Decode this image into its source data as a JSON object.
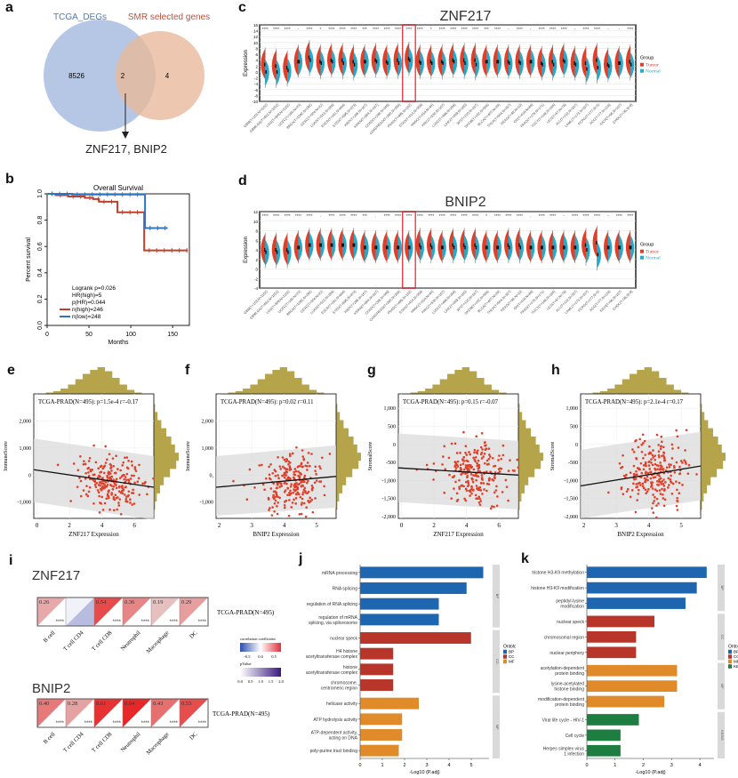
{
  "panel_labels": [
    "a",
    "b",
    "c",
    "d",
    "e",
    "f",
    "g",
    "h",
    "i",
    "j",
    "k"
  ],
  "venn": {
    "left_label": "TCGA_DEGs",
    "right_label": "SMR selected genes",
    "left_only": "8526",
    "intersection": "2",
    "right_only": "4",
    "result_text": "ZNF217, BNIP2",
    "colors": {
      "left": "#a9bde0",
      "right": "#e8b99b",
      "left_text": "#4a7bc0",
      "right_text": "#c0503a"
    }
  },
  "chart_data": [
    {
      "id": "b",
      "type": "line",
      "title": "Overall Survival",
      "xlabel": "Months",
      "ylabel": "Percent survival",
      "xlim": [
        0,
        170
      ],
      "ylim": [
        0,
        1.0
      ],
      "xticks": [
        0,
        50,
        100,
        150
      ],
      "yticks": [
        "0.0",
        "0.2",
        "0.4",
        "0.6",
        "0.8",
        "1.0"
      ],
      "legend_text": [
        "Logrank p=0.026",
        "HR(high)=5",
        "p(HR)=0.044"
      ],
      "series": [
        {
          "name": "n(high)=246",
          "color": "#c0412b",
          "steps": [
            [
              0,
              1.0
            ],
            [
              10,
              0.99
            ],
            [
              25,
              0.98
            ],
            [
              45,
              0.97
            ],
            [
              55,
              0.96
            ],
            [
              62,
              0.94
            ],
            [
              84,
              0.86
            ],
            [
              116,
              0.57
            ],
            [
              168,
              0.57
            ]
          ]
        },
        {
          "name": "n(low)=248",
          "color": "#2e75c0",
          "steps": [
            [
              0,
              1.0
            ],
            [
              30,
              0.995
            ],
            [
              116,
              0.995
            ],
            [
              117,
              0.74
            ],
            [
              144,
              0.74
            ]
          ]
        }
      ]
    },
    {
      "id": "c",
      "type": "violin",
      "title": "ZNF217",
      "ylabel": "Expression",
      "yticks": [
        "-10",
        "-8",
        "-6",
        "-4",
        "-2",
        "0",
        "2",
        "4",
        "6",
        "8",
        "10",
        "12",
        "14",
        "16"
      ],
      "ylim": [
        -10,
        16
      ],
      "legend_title": "Group",
      "legend": [
        {
          "name": "Tumor",
          "color": "#e0402a"
        },
        {
          "name": "Normal",
          "color": "#2aa8c8"
        }
      ],
      "highlight_category": "PRAD(T=495,N=152)",
      "categories": [
        "GBM(T=153,N=1152)",
        "GBMLGG(T=662,N=1152)",
        "LGG(T=509,N=1152)",
        "UCEC(T=180,N=23)",
        "BRCA(T=1092,N=292)",
        "CESC(T=304,N=22)",
        "LUAD(T=513,N=288)",
        "ESCA(T=181,N=664)",
        "STES(T=595,N=873)",
        "KIRP(T=288,N=167)",
        "KIPAN(T=884,N=167)",
        "COAD(T=288,N=349)",
        "COADREAD(T=380,N=358)",
        "PRAD(T=495,N=152)",
        "STAD(T=414,N=359)",
        "HNSC(T=518,N=44)",
        "KIRC(T=530,N=167)",
        "LUSC(T=498,N=288)",
        "LIHC(T=369,N=160)",
        "WT(T=120,N=167)",
        "SKCM(T=102,N=556)",
        "BLCA(T=407,N=28)",
        "THCA(T=504,N=337)",
        "READ(T=92,N=10)",
        "OV(T=418,N=88)",
        "PAAD(T=178,N=171)",
        "TGCT(T=148,N=165)",
        "UCS(T=57,N=78)",
        "ALL(T=132,N=337)",
        "LAML(T=173,N=337)",
        "PCPG(T=177,N=3)",
        "ACC(T=77,N=128)",
        "KICH(T=66,N=167)",
        "CHOL(T=36,N=9)"
      ],
      "significance": [
        "****",
        "****",
        "****",
        "-",
        "****",
        "*",
        "****",
        "****",
        "****",
        "***",
        "****",
        "****",
        "****",
        "****",
        "****",
        "*",
        "****",
        "****",
        "****",
        "****",
        "***",
        "****",
        "-",
        "****",
        "-",
        "****",
        "****",
        "****",
        "-",
        "****",
        "****",
        "-",
        "-",
        "****"
      ],
      "tumor_median": [
        2.5,
        2,
        1.5,
        3.5,
        5,
        3.5,
        4,
        4,
        3.5,
        3.5,
        4,
        3.5,
        4,
        4.5,
        3.5,
        3.5,
        3.5,
        4,
        4,
        4,
        3.5,
        3.5,
        3.5,
        3.5,
        3.5,
        3,
        3.5,
        4,
        3,
        3,
        4,
        2.5,
        3,
        3.5
      ],
      "normal_median": [
        0,
        0,
        0.5,
        3.5,
        4,
        3,
        3.5,
        3,
        2.5,
        3.5,
        3.5,
        3,
        3,
        4,
        3,
        3,
        3,
        3.5,
        3,
        2.5,
        3.5,
        3.5,
        3,
        3,
        3.5,
        2.5,
        2.5,
        3.5,
        2.5,
        1,
        1.5,
        2,
        3,
        2.5
      ]
    },
    {
      "id": "d",
      "type": "violin",
      "title": "BNIP2",
      "ylabel": "Expression",
      "yticks": [
        "-4",
        "-2",
        "0",
        "2",
        "4",
        "6",
        "8",
        "10",
        "12"
      ],
      "ylim": [
        -4,
        12
      ],
      "legend_title": "Group",
      "legend": [
        {
          "name": "Tumor",
          "color": "#e0402a"
        },
        {
          "name": "Normal",
          "color": "#2aa8c8"
        }
      ],
      "highlight_category": "PRAD(T=495,N=152)",
      "significance": [
        "****",
        "****",
        "****",
        "****",
        "****",
        ".",
        "****",
        "****",
        "****",
        "***",
        ".",
        "****",
        "****",
        "****",
        "****",
        "****",
        "****",
        "****",
        "****",
        "****",
        "*",
        "****",
        "****",
        "****",
        ".",
        "****",
        "****",
        "-",
        "****",
        "****",
        "****",
        "-",
        "****",
        "****"
      ],
      "tumor_median": [
        4,
        4,
        4,
        4.5,
        5,
        5,
        5,
        5,
        5,
        4.5,
        4.5,
        4.5,
        4.5,
        4.5,
        5,
        5,
        4.5,
        5,
        5,
        5,
        4.5,
        4.5,
        5,
        5,
        4.5,
        4.5,
        4.5,
        4.5,
        4.5,
        5,
        5.5,
        4.5,
        4.5,
        4.5
      ],
      "normal_median": [
        3.5,
        3.5,
        3.5,
        4.5,
        5,
        5,
        5,
        5,
        5,
        4.5,
        4.5,
        4.5,
        4.5,
        4.5,
        4.5,
        4.5,
        4.5,
        4.5,
        4.5,
        4.5,
        4.5,
        4.5,
        4.5,
        4.5,
        4.5,
        4.5,
        4.5,
        4.5,
        4.5,
        4,
        3,
        4.5,
        4.5,
        4.5
      ]
    },
    {
      "id": "e",
      "type": "scatter",
      "annotation": "TCGA-PRAD(N=495): p=1.5e-4 r=-0.17",
      "xlabel": "ZNF217 Expression",
      "ylabel": "ImmuneScore",
      "xlim": [
        -0.2,
        7.2
      ],
      "ylim": [
        -1600,
        3000
      ],
      "xticks": [
        "0",
        "2",
        "4",
        "6"
      ],
      "yticks": [
        "-1,000",
        "0",
        "1,000",
        "2,000"
      ],
      "xtick_values": [
        0,
        2,
        4,
        6
      ],
      "ytick_values": [
        -1000,
        0,
        1000,
        2000
      ],
      "fit": {
        "x": [
          -0.2,
          7.2
        ],
        "y": [
          200,
          -450
        ]
      },
      "band": {
        "upper": [
          1350,
          700
        ],
        "lower": [
          -1000,
          -1650
        ]
      },
      "x_center": 4.5,
      "x_sd": 1.0,
      "y_center": -250,
      "y_sd": 550,
      "slope": -90,
      "seed": 11
    },
    {
      "id": "f",
      "type": "scatter",
      "annotation": "TCGA-PRAD(N=495): p=0.02 r=0.11",
      "xlabel": "BNIP2 Expression",
      "ylabel": "ImmuneScore",
      "xlim": [
        1.9,
        5.6
      ],
      "ylim": [
        -1600,
        3000
      ],
      "xticks": [
        "2",
        "3",
        "4",
        "5"
      ],
      "yticks": [
        "-1,000",
        "0,",
        "1,000",
        "2,000"
      ],
      "xtick_values": [
        2,
        3,
        4,
        5
      ],
      "ytick_values": [
        -1000,
        0,
        1000,
        2000
      ],
      "fit": {
        "x": [
          1.9,
          5.6
        ],
        "y": [
          -450,
          -50
        ]
      },
      "band": {
        "upper": [
          700,
          1100
        ],
        "lower": [
          -1500,
          -1200
        ]
      },
      "x_center": 4.2,
      "x_sd": 0.5,
      "y_center": -250,
      "y_sd": 550,
      "slope": 150,
      "seed": 23
    },
    {
      "id": "g",
      "type": "scatter",
      "annotation": "TCGA-PRAD(N=495): p=0.15 r=-0.07",
      "xlabel": "ZNF217 Expression",
      "ylabel": "StromalScore",
      "xlim": [
        -0.2,
        7.2
      ],
      "ylim": [
        -2050,
        1400
      ],
      "xticks": [
        "0",
        "2",
        "4",
        "6"
      ],
      "yticks": [
        "-2,000",
        "-1,500",
        "-1,000",
        "-500",
        "0",
        "500",
        "1,000"
      ],
      "xtick_values": [
        0,
        2,
        4,
        6
      ],
      "ytick_values": [
        -2000,
        -1500,
        -1000,
        -500,
        0,
        500,
        1000
      ],
      "fit": {
        "x": [
          -0.2,
          7.2
        ],
        "y": [
          -650,
          -850
        ]
      },
      "band": {
        "upper": [
          300,
          100
        ],
        "lower": [
          -1600,
          -1800
        ]
      },
      "x_center": 4.5,
      "x_sd": 1.0,
      "y_center": -800,
      "y_sd": 450,
      "slope": -30,
      "seed": 37
    },
    {
      "id": "h",
      "type": "scatter",
      "annotation": "TCGA-PRAD(N=495): p=2.1e-4 r=0.17",
      "xlabel": "BNIP2 Expression",
      "ylabel": "StromalScore",
      "xlim": [
        1.9,
        5.6
      ],
      "ylim": [
        -2050,
        1400
      ],
      "xticks": [
        "2",
        "3",
        "4",
        "5"
      ],
      "yticks": [
        "-2,000",
        "-1,500",
        "-1,000",
        "-500",
        "0",
        "500",
        "1,000"
      ],
      "xtick_values": [
        2,
        3,
        4,
        5
      ],
      "ytick_values": [
        -2000,
        -1500,
        -1000,
        -500,
        0,
        500,
        1000
      ],
      "fit": {
        "x": [
          1.9,
          5.6
        ],
        "y": [
          -1150,
          -600
        ]
      },
      "band": {
        "upper": [
          -150,
          350
        ],
        "lower": [
          -2050,
          -1550
        ]
      },
      "x_center": 4.2,
      "x_sd": 0.5,
      "y_center": -800,
      "y_sd": 450,
      "slope": 150,
      "seed": 51
    },
    {
      "id": "i",
      "type": "heatmap",
      "cell_types": [
        "B cell",
        "T cell CD4",
        "T cell CD8",
        "Neutrophil",
        "Macrophage",
        "DC"
      ],
      "row_label": "TCGA-PRAD(N=495)",
      "genes": [
        {
          "name": "ZNF217",
          "values": [
            0.26,
            -0.1,
            0.54,
            0.36,
            0.19,
            0.29
          ],
          "labels": [
            "0.26",
            "",
            "0.54",
            "0.36",
            "0.19",
            "0.29"
          ],
          "stars": [
            "****",
            "",
            "****",
            "****",
            "****",
            "****"
          ]
        },
        {
          "name": "BNIP2",
          "values": [
            0.4,
            0.28,
            0.61,
            0.64,
            0.43,
            0.53
          ],
          "labels": [
            "0.40",
            "0.28",
            "0.61",
            "0.64",
            "0.43",
            "0.53"
          ],
          "stars": [
            "****",
            "****",
            "****",
            "****",
            "****",
            "****"
          ]
        }
      ],
      "legend_corr_title": "correlation coefficient",
      "legend_corr_ticks": [
        "-0.5",
        "0.0",
        "0.5"
      ],
      "legend_p_title": "pValue",
      "legend_p_ticks": [
        "0.0",
        "0.5",
        "1.0",
        "1.5",
        "2.0"
      ]
    },
    {
      "id": "j",
      "type": "bar",
      "orientation": "horizontal",
      "xlabel": "-Log10 (P.adj)",
      "xticks": [
        "0",
        "1",
        "2",
        "3",
        "4",
        "5"
      ],
      "xlim": [
        0,
        5.8
      ],
      "legend_title": "Ontology",
      "legend": [
        {
          "name": "BP",
          "color": "#1f66b0"
        },
        {
          "name": "CC",
          "color": "#b8352a"
        },
        {
          "name": "MF",
          "color": "#e08a2a"
        }
      ],
      "groups": [
        {
          "name": "BP",
          "strip": "BP",
          "color": "#1f66b0",
          "items": [
            {
              "label": "mRNA processing",
              "value": 5.55
            },
            {
              "label": "RNA splicing",
              "value": 4.8
            },
            {
              "label": "regulation of RNA splicing",
              "value": 3.55
            },
            {
              "label": "regulation of mRNA splicing, via spliceosome",
              "value": 3.55
            }
          ]
        },
        {
          "name": "CC",
          "strip": "CC",
          "color": "#b8352a",
          "items": [
            {
              "label": "nuclear speck",
              "value": 5.0
            },
            {
              "label": "H4 histone acetyltransferase complex",
              "value": 1.5
            },
            {
              "label": "histone acetyltransferase complex",
              "value": 1.5
            },
            {
              "label": "chromosome, centromeric region",
              "value": 1.5
            }
          ]
        },
        {
          "name": "MF",
          "strip": "MF",
          "color": "#e08a2a",
          "items": [
            {
              "label": "helicase activity",
              "value": 2.65
            },
            {
              "label": "ATP hydrolysis activity",
              "value": 1.9
            },
            {
              "label": "ATP-dependent activity, acting on DNA",
              "value": 1.9
            },
            {
              "label": "poly-purine tract binding",
              "value": 1.75
            }
          ]
        }
      ]
    },
    {
      "id": "k",
      "type": "bar",
      "orientation": "horizontal",
      "xlabel": "-Log10 (P.adj)",
      "xticks": [
        "0",
        "1",
        "2",
        "3",
        "4"
      ],
      "xlim": [
        0,
        4.5
      ],
      "legend_title": "Ontology",
      "legend": [
        {
          "name": "BP",
          "color": "#1f66b0"
        },
        {
          "name": "CC",
          "color": "#b8352a"
        },
        {
          "name": "MF",
          "color": "#e08a2a"
        },
        {
          "name": "KEGG",
          "color": "#1e7d40"
        }
      ],
      "groups": [
        {
          "name": "BP",
          "strip": "BP",
          "color": "#1f66b0",
          "items": [
            {
              "label": "histone H3-K9 methylation",
              "value": 4.25
            },
            {
              "label": "histone H3-K9 modification",
              "value": 3.9
            },
            {
              "label": "peptidyl-lysine modification",
              "value": 3.5
            }
          ]
        },
        {
          "name": "CC",
          "strip": "CC",
          "color": "#b8352a",
          "items": [
            {
              "label": "nuclear speck",
              "value": 2.4
            },
            {
              "label": "chromosomal region",
              "value": 1.75
            },
            {
              "label": "nuclear periphery",
              "value": 1.75
            }
          ]
        },
        {
          "name": "MF",
          "strip": "MF",
          "color": "#e08a2a",
          "items": [
            {
              "label": "acetylation-dependent protein binding",
              "value": 3.2
            },
            {
              "label": "lysine-acetylated histone binding",
              "value": 3.2
            },
            {
              "label": "modification-dependent protein binding",
              "value": 2.75
            }
          ]
        },
        {
          "name": "KEGG",
          "strip": "KEGG",
          "color": "#1e7d40",
          "items": [
            {
              "label": "Viral life cycle - HIV-1",
              "value": 1.85
            },
            {
              "label": "Cell cycle",
              "value": 1.2
            },
            {
              "label": "Herpes simplex virus 1 infection",
              "value": 1.2
            }
          ]
        }
      ]
    }
  ]
}
